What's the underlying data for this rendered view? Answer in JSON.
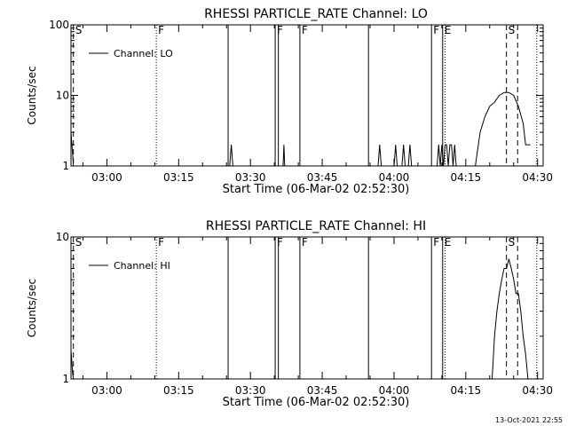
{
  "chart_data": [
    {
      "type": "line",
      "title": "RHESSI PARTICLE_RATE Channel: LO",
      "xlabel": "Start Time (06-Mar-02 02:52:30)",
      "ylabel": "Counts/sec",
      "y_scale": "log",
      "xlim": [
        "02:52:30",
        "04:31:10"
      ],
      "ylim": [
        1,
        100
      ],
      "x_ticks": [
        "03:00",
        "03:15",
        "03:30",
        "03:45",
        "04:00",
        "04:15",
        "04:30"
      ],
      "y_ticks": [
        "1",
        "10",
        "100"
      ],
      "legend": "top-left",
      "series": [
        {
          "name": "Channel: LO",
          "x": [
            "02:52:30",
            "02:52:50",
            "02:53:00",
            "02:53:30",
            "03:25:40",
            "03:26:00",
            "03:26:20",
            "03:36:50",
            "03:37:00",
            "03:37:10",
            "03:56:40",
            "03:57:00",
            "03:57:20",
            "04:00:00",
            "04:00:20",
            "04:00:40",
            "04:01:40",
            "04:02:00",
            "04:02:20",
            "04:03:00",
            "04:03:20",
            "04:03:40",
            "04:09:00",
            "04:09:20",
            "04:09:40",
            "04:10:00",
            "04:10:20",
            "04:10:40",
            "04:11:00",
            "04:11:20",
            "04:11:40",
            "04:12:00",
            "04:12:20",
            "04:12:40",
            "04:13:00",
            "04:13:20",
            "04:17:00",
            "04:18:00",
            "04:19:00",
            "04:20:00",
            "04:21:00",
            "04:22:00",
            "04:23:00",
            "04:24:00",
            "04:25:00",
            "04:26:00",
            "04:27:00",
            "04:27:30",
            "04:28:30"
          ],
          "y": [
            3,
            1.5,
            1,
            1,
            1,
            2,
            1,
            1,
            2,
            1,
            1,
            2,
            1,
            1,
            2,
            1,
            1,
            2,
            1,
            1,
            2,
            1,
            1,
            2,
            1,
            2,
            1,
            2,
            2,
            1,
            2,
            2,
            1,
            2,
            1,
            1,
            1,
            3,
            5,
            7,
            8,
            10,
            11,
            11,
            10,
            7,
            4,
            2,
            2
          ]
        }
      ],
      "markers": [
        {
          "label": "S",
          "time": "02:53:00",
          "style": "dashed"
        },
        {
          "label": "F",
          "time": "03:10:20",
          "style": "dotted"
        },
        {
          "label": "",
          "time": "03:25:20",
          "style": "solid"
        },
        {
          "label": "F",
          "time": "03:35:10",
          "style": "solid"
        },
        {
          "label": "",
          "time": "03:35:50",
          "style": "solid"
        },
        {
          "label": "F",
          "time": "03:40:20",
          "style": "solid"
        },
        {
          "label": "",
          "time": "03:54:40",
          "style": "solid"
        },
        {
          "label": "F",
          "time": "04:07:50",
          "style": "solid"
        },
        {
          "label": "E",
          "time": "04:10:10",
          "style": "solid"
        },
        {
          "label": "",
          "time": "04:10:40",
          "style": "dotted"
        },
        {
          "label": "S",
          "time": "04:23:30",
          "style": "dashed"
        },
        {
          "label": "",
          "time": "04:25:50",
          "style": "dashed"
        },
        {
          "label": "",
          "time": "04:29:50",
          "style": "dotted"
        }
      ]
    },
    {
      "type": "line",
      "title": "RHESSI PARTICLE_RATE Channel: HI",
      "xlabel": "Start Time (06-Mar-02 02:52:30)",
      "ylabel": "Counts/sec",
      "y_scale": "log",
      "xlim": [
        "02:52:30",
        "04:31:10"
      ],
      "ylim": [
        1,
        10
      ],
      "x_ticks": [
        "03:00",
        "03:15",
        "03:30",
        "03:45",
        "04:00",
        "04:15",
        "04:30"
      ],
      "y_ticks": [
        "1",
        "10"
      ],
      "legend": "top-left",
      "series": [
        {
          "name": "Channel: HI",
          "x": [
            "02:52:30",
            "02:52:50",
            "02:53:00",
            "04:20:30",
            "04:21:00",
            "04:21:30",
            "04:22:00",
            "04:22:30",
            "04:23:00",
            "04:23:30",
            "04:24:00",
            "04:24:30",
            "04:25:00",
            "04:25:30",
            "04:26:00",
            "04:26:30",
            "04:27:00",
            "04:27:30",
            "04:28:00"
          ],
          "y": [
            1.6,
            1.1,
            1,
            1,
            2,
            3,
            4,
            5,
            6,
            6,
            7,
            6,
            5,
            4,
            4,
            3,
            2,
            1.5,
            1
          ]
        }
      ],
      "markers": [
        {
          "label": "S",
          "time": "02:53:00",
          "style": "dashed"
        },
        {
          "label": "F",
          "time": "03:10:20",
          "style": "dotted"
        },
        {
          "label": "",
          "time": "03:25:20",
          "style": "solid"
        },
        {
          "label": "F",
          "time": "03:35:10",
          "style": "solid"
        },
        {
          "label": "",
          "time": "03:35:50",
          "style": "solid"
        },
        {
          "label": "F",
          "time": "03:40:20",
          "style": "solid"
        },
        {
          "label": "",
          "time": "03:54:40",
          "style": "solid"
        },
        {
          "label": "F",
          "time": "04:07:50",
          "style": "solid"
        },
        {
          "label": "E",
          "time": "04:10:10",
          "style": "solid"
        },
        {
          "label": "",
          "time": "04:10:40",
          "style": "dotted"
        },
        {
          "label": "S",
          "time": "04:23:30",
          "style": "dashed"
        },
        {
          "label": "",
          "time": "04:25:50",
          "style": "dashed"
        },
        {
          "label": "",
          "time": "04:29:50",
          "style": "dotted"
        }
      ]
    }
  ],
  "footer": {
    "timestamp": "13-Oct-2021 22:55"
  }
}
